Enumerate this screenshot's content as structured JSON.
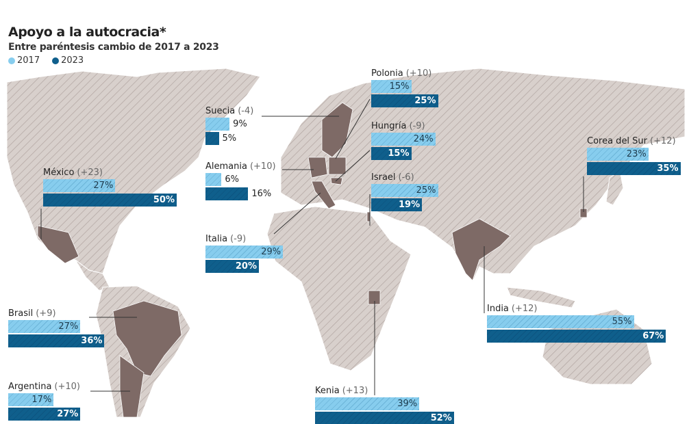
{
  "header": {
    "title": "Apoyo a la autocracia*",
    "subtitle": "Entre paréntesis cambio de 2017 a 2023"
  },
  "legend": [
    {
      "label": "2017",
      "color": "#87cdee"
    },
    {
      "label": "2023",
      "color": "#0f5f8c"
    }
  ],
  "colors": {
    "map_land": "#d8d0cc",
    "map_hatch": "#b3a7a3",
    "highlighted_country": "#7e6a66"
  },
  "chart_data": {
    "type": "bar",
    "title": "Apoyo a la autocracia*",
    "subtitle": "Entre paréntesis cambio de 2017 a 2023",
    "unit": "%",
    "categories": [
      "Polonia",
      "Suecia",
      "Hungría",
      "Alemania",
      "Israel",
      "México",
      "Corea del Sur",
      "Italia",
      "India",
      "Brasil",
      "Argentina",
      "Kenia"
    ],
    "changes": [
      "+10",
      "-4",
      "-9",
      "+10",
      "-6",
      "+23",
      "+12",
      "-9",
      "+12",
      "+9",
      "+10",
      "+13"
    ],
    "series": [
      {
        "name": "2017",
        "values": [
          15,
          9,
          24,
          6,
          25,
          27,
          23,
          29,
          55,
          27,
          17,
          39
        ]
      },
      {
        "name": "2023",
        "values": [
          25,
          5,
          15,
          16,
          19,
          50,
          35,
          20,
          67,
          36,
          27,
          52
        ]
      }
    ]
  }
}
